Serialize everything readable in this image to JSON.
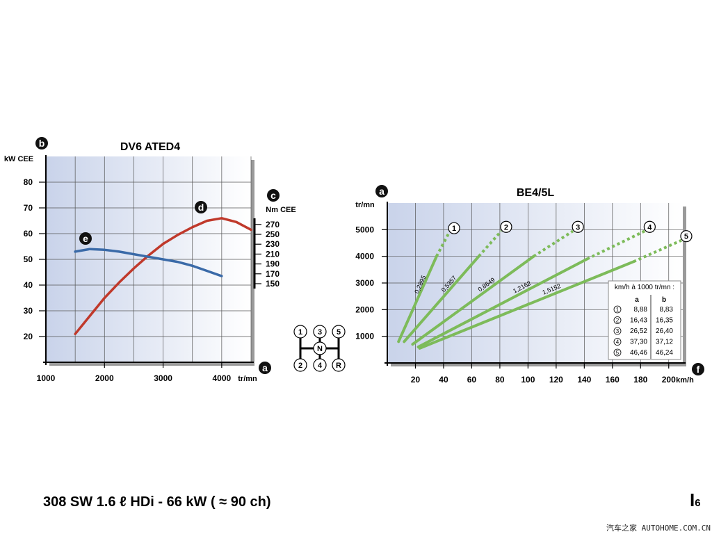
{
  "footer": {
    "model": "308 SW 1.6 ℓ HDi - 66 kW ( ≈ 90 ch)",
    "page_code_main": "I",
    "page_code_sub": "6",
    "watermark": "汽车之家 AUTOHOME.COM.CN"
  },
  "chart_data": [
    {
      "type": "line",
      "title": "DV6 ATED4",
      "x_axis": {
        "unit": "tr/mn",
        "marker": "a",
        "range": [
          1000,
          4500
        ],
        "ticks": [
          1000,
          2000,
          3000,
          4000
        ]
      },
      "y_left": {
        "unit": "kW CEE",
        "marker": "b",
        "range": [
          10,
          90
        ],
        "ticks": [
          20,
          30,
          40,
          50,
          60,
          70,
          80
        ]
      },
      "y_right": {
        "unit": "Nm CEE",
        "marker": "c",
        "ticks": [
          150,
          170,
          190,
          210,
          230,
          250,
          270
        ]
      },
      "grid": true,
      "series": [
        {
          "marker": "d",
          "axis": "left",
          "color": "#c0392b",
          "x": [
            1500,
            1750,
            2000,
            2250,
            2500,
            2750,
            3000,
            3250,
            3500,
            3750,
            4000,
            4250,
            4500
          ],
          "y": [
            21,
            28,
            35,
            41,
            46.5,
            51.5,
            56,
            59.5,
            62.5,
            65,
            66,
            64.5,
            61.5
          ]
        },
        {
          "marker": "e",
          "axis": "left",
          "color": "#3a6aa8",
          "x": [
            1500,
            1750,
            2000,
            2250,
            2500,
            2750,
            3000,
            3250,
            3500,
            3750,
            4000
          ],
          "y": [
            53,
            54,
            53.7,
            53,
            52,
            51,
            50,
            49,
            47.5,
            45.5,
            43.5
          ]
        }
      ],
      "gearbox_pattern": {
        "top": [
          "1",
          "3",
          "5"
        ],
        "middle": "N",
        "bottom": [
          "2",
          "4",
          "R"
        ]
      }
    },
    {
      "type": "line",
      "title": "BE4/5L",
      "x_axis": {
        "unit": "km/h",
        "marker": "f",
        "range": [
          0,
          210
        ],
        "ticks": [
          20,
          40,
          60,
          80,
          100,
          120,
          140,
          160,
          180,
          200
        ]
      },
      "y_axis": {
        "unit": "tr/mn",
        "marker": "a",
        "range": [
          0,
          6000
        ],
        "ticks": [
          1000,
          2000,
          3000,
          4000,
          5000
        ]
      },
      "grid": true,
      "series": [
        {
          "gear": "1",
          "ratio": "0,2895",
          "color": "#7dbb5a",
          "x": [
            8,
            35,
            44
          ],
          "y": [
            800,
            4000,
            4900
          ]
        },
        {
          "gear": "2",
          "ratio": "0,5357",
          "color": "#7dbb5a",
          "x": [
            12,
            65,
            81
          ],
          "y": [
            800,
            4000,
            4950
          ]
        },
        {
          "gear": "3",
          "ratio": "0,8649",
          "color": "#7dbb5a",
          "x": [
            18,
            104,
            132
          ],
          "y": [
            700,
            4000,
            4950
          ]
        },
        {
          "gear": "4",
          "ratio": "1,2162",
          "color": "#7dbb5a",
          "x": [
            22,
            142,
            183
          ],
          "y": [
            600,
            3900,
            4950
          ]
        },
        {
          "gear": "5",
          "ratio": "1,5152",
          "color": "#7dbb5a",
          "x": [
            23,
            175,
            209
          ],
          "y": [
            550,
            3800,
            4600
          ]
        }
      ],
      "speed_table": {
        "title": "km/h à 1000 tr/mn :",
        "columns": [
          "",
          "a",
          "b"
        ],
        "rows": [
          [
            "1",
            "8,88",
            "8,83"
          ],
          [
            "2",
            "16,43",
            "16,35"
          ],
          [
            "3",
            "26,52",
            "26,40"
          ],
          [
            "4",
            "37,30",
            "37,12"
          ],
          [
            "5",
            "46,46",
            "46,24"
          ]
        ]
      }
    }
  ]
}
